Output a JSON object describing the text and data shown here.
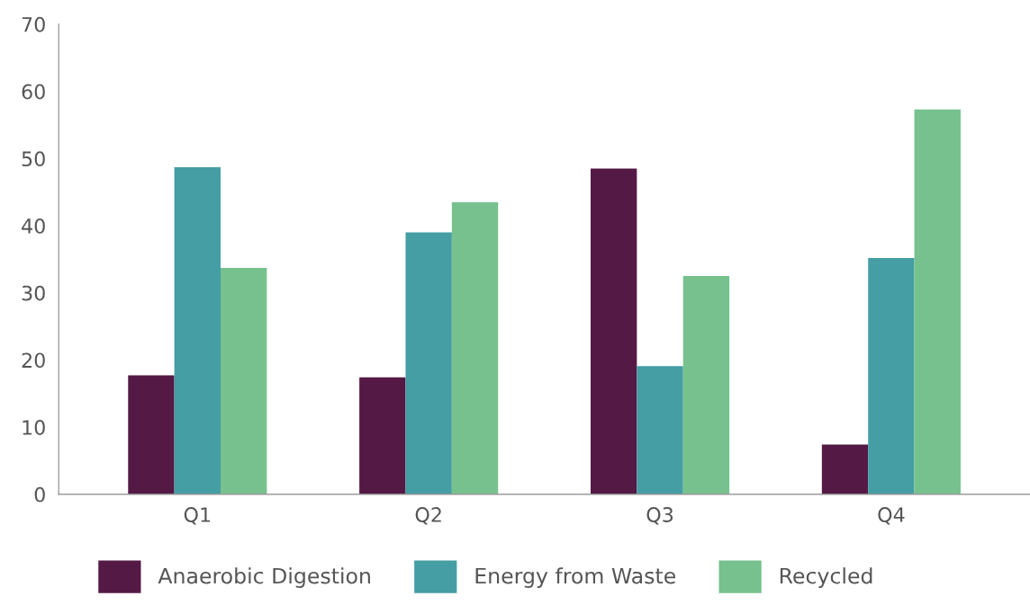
{
  "chart_data": {
    "type": "bar",
    "categories": [
      "Q1",
      "Q2",
      "Q3",
      "Q4"
    ],
    "series": [
      {
        "name": "Anaerobic Digestion",
        "color": "#541a45",
        "values": [
          17.7,
          17.4,
          48.5,
          7.4
        ]
      },
      {
        "name": "Energy from Waste",
        "color": "#449ea3",
        "values": [
          48.7,
          39.0,
          19.1,
          35.2
        ]
      },
      {
        "name": "Recycled",
        "color": "#77c18e",
        "values": [
          33.7,
          43.5,
          32.5,
          57.3
        ]
      }
    ],
    "ylim": [
      0,
      70
    ],
    "yticks": [
      0,
      10,
      20,
      30,
      40,
      50,
      60,
      70
    ],
    "grid": false,
    "legend": "bottom"
  }
}
